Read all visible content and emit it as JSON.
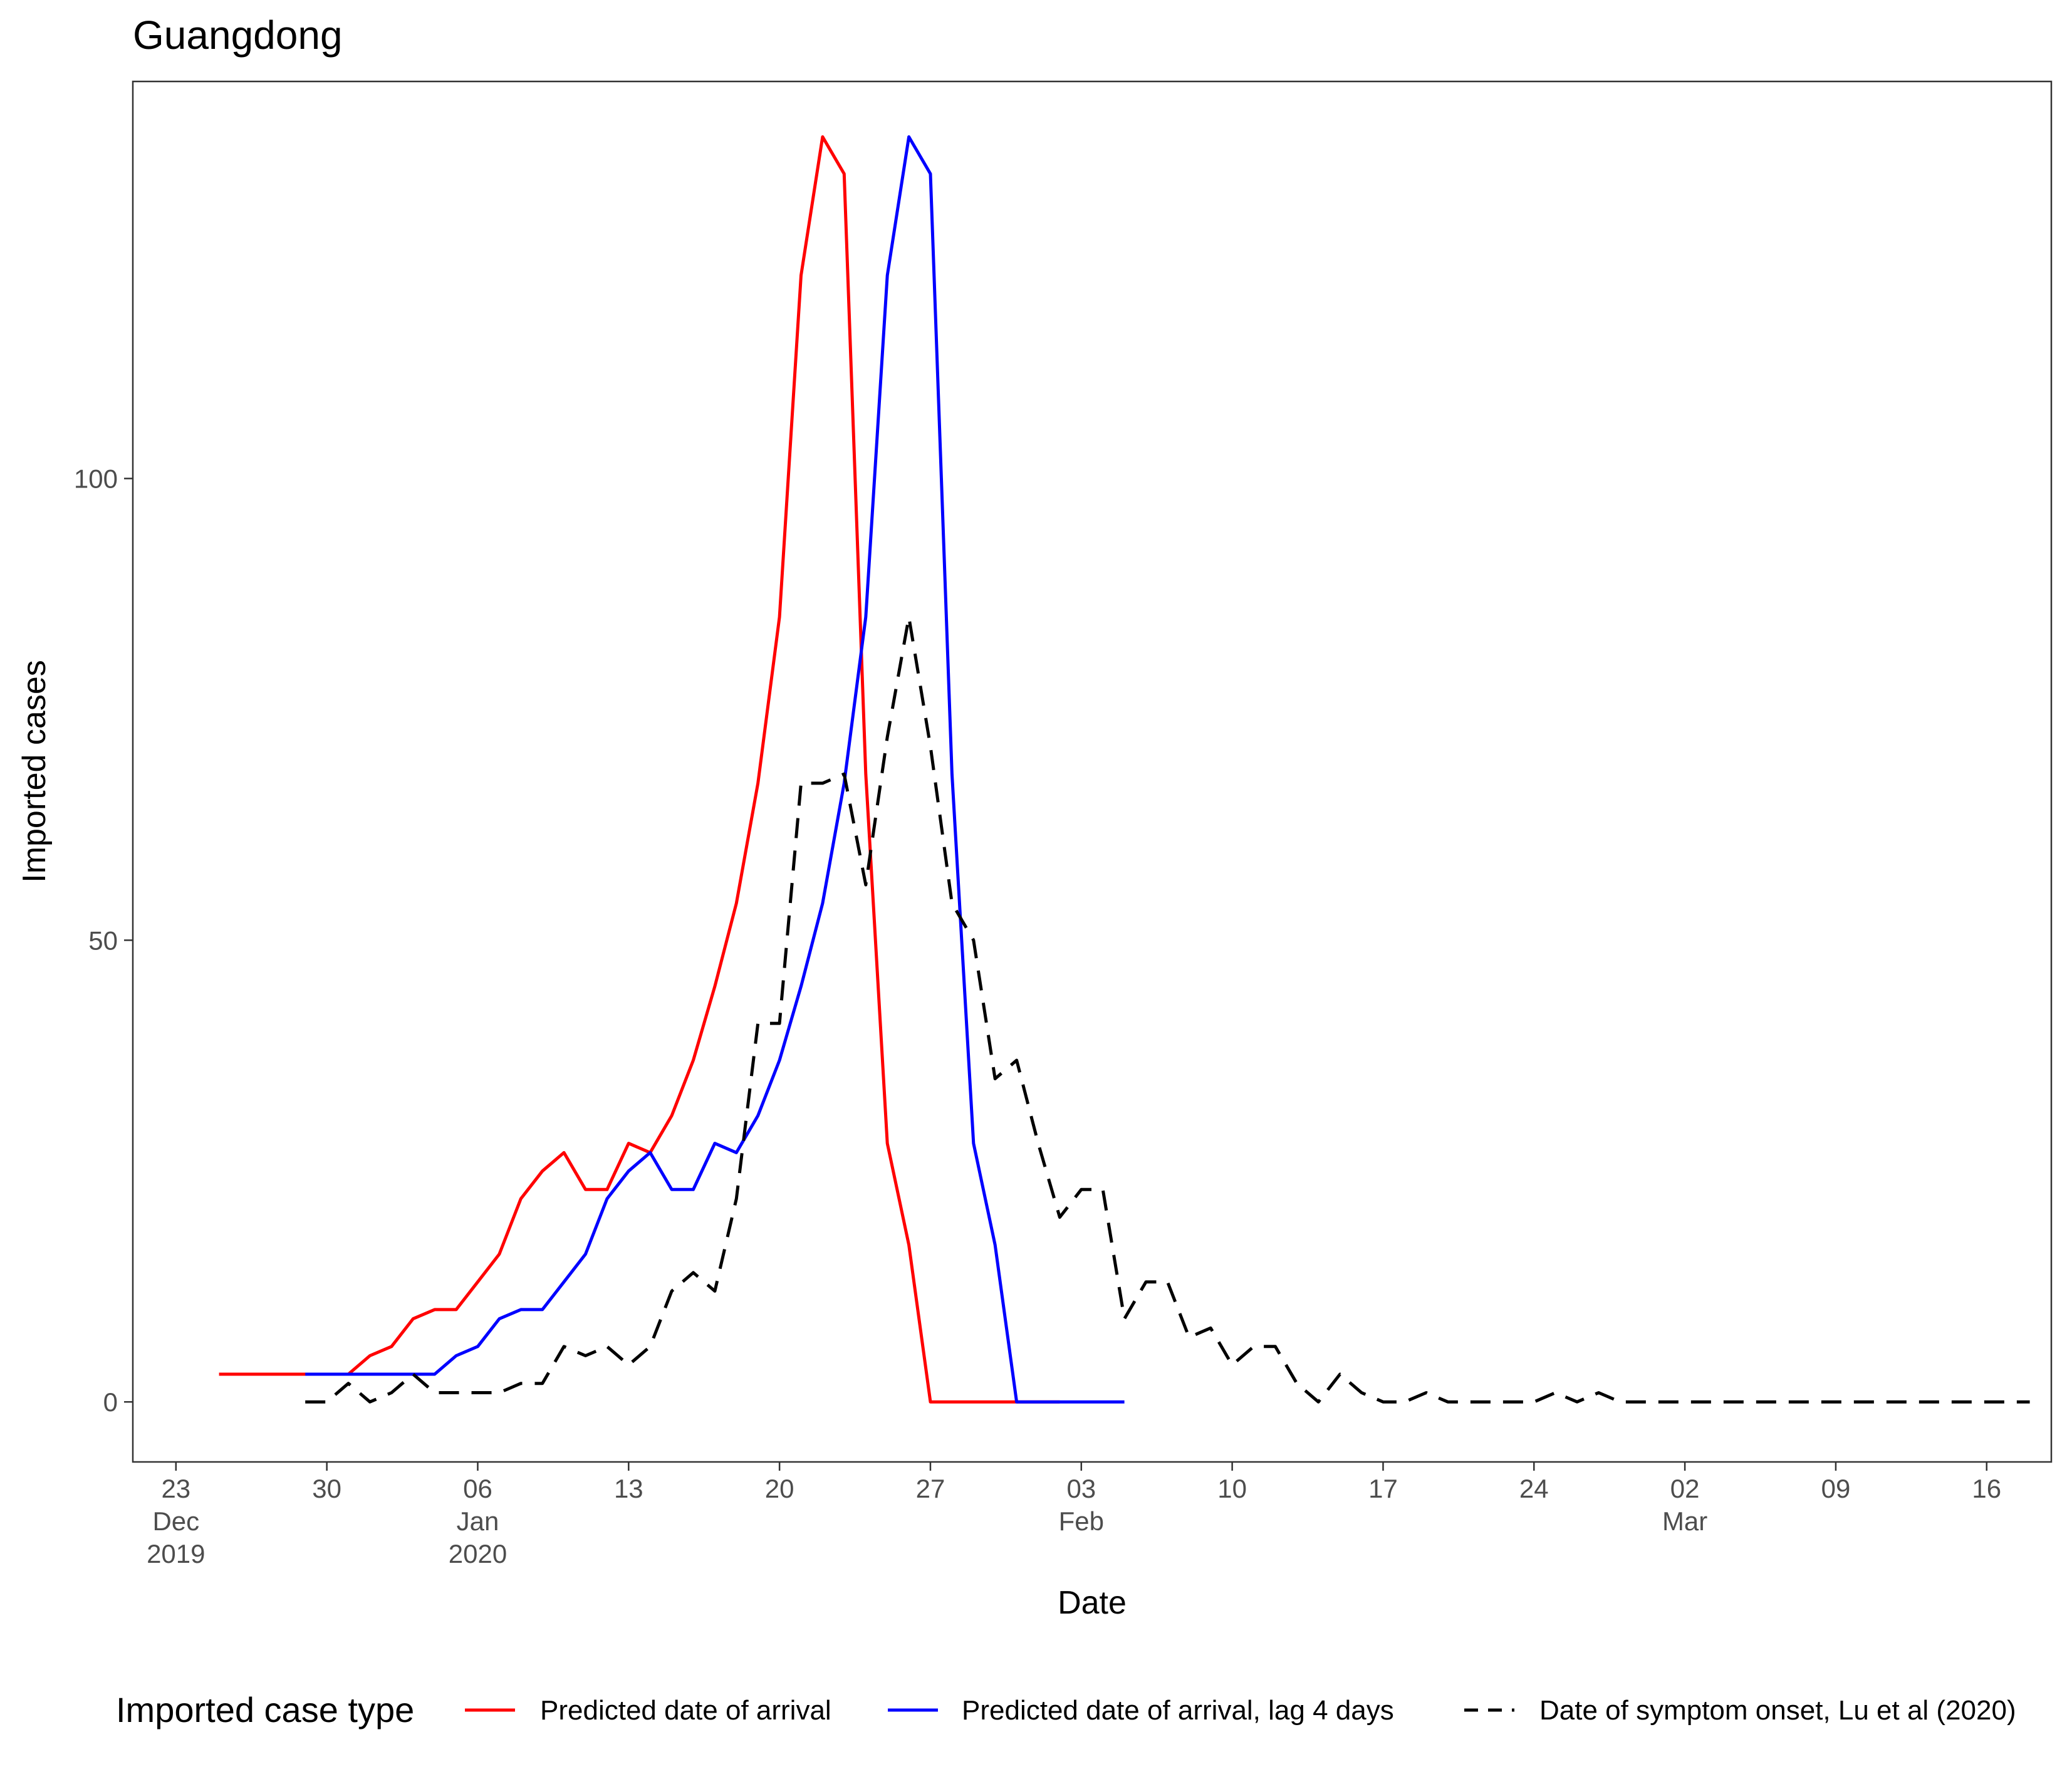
{
  "chart_data": {
    "type": "line",
    "title": "Guangdong",
    "xlabel": "Date",
    "ylabel": "Imported cases",
    "x_unit": "date",
    "xlim": [
      "2019-12-21",
      "2020-03-19"
    ],
    "ylim": [
      -6.5,
      143
    ],
    "grid": false,
    "y_ticks": [
      0,
      50,
      100
    ],
    "x_ticks": [
      {
        "date": "2019-12-23",
        "lines": [
          "23",
          "Dec",
          "2019"
        ]
      },
      {
        "date": "2019-12-30",
        "lines": [
          "30"
        ]
      },
      {
        "date": "2020-01-06",
        "lines": [
          "06",
          "Jan",
          "2020"
        ]
      },
      {
        "date": "2020-01-13",
        "lines": [
          "13"
        ]
      },
      {
        "date": "2020-01-20",
        "lines": [
          "20"
        ]
      },
      {
        "date": "2020-01-27",
        "lines": [
          "27"
        ]
      },
      {
        "date": "2020-02-03",
        "lines": [
          "03",
          "Feb"
        ]
      },
      {
        "date": "2020-02-10",
        "lines": [
          "10"
        ]
      },
      {
        "date": "2020-02-17",
        "lines": [
          "17"
        ]
      },
      {
        "date": "2020-02-24",
        "lines": [
          "24"
        ]
      },
      {
        "date": "2020-03-02",
        "lines": [
          "02",
          "Mar"
        ]
      },
      {
        "date": "2020-03-09",
        "lines": [
          "09"
        ]
      },
      {
        "date": "2020-03-16",
        "lines": [
          "16"
        ]
      }
    ],
    "legend": {
      "title": "Imported case type",
      "position": "bottom"
    },
    "series": [
      {
        "name": "Predicted date of arrival",
        "color": "#ff0000",
        "dash": "solid",
        "start_date": "2019-12-25",
        "values": [
          3,
          3,
          3,
          3,
          3,
          3,
          3,
          5,
          6,
          9,
          10,
          10,
          13,
          16,
          22,
          25,
          27,
          23,
          23,
          28,
          27,
          31,
          37,
          45,
          54,
          67,
          85,
          122,
          137,
          133,
          68,
          28,
          17,
          0,
          0,
          0,
          0,
          0,
          0,
          0
        ]
      },
      {
        "name": "Predicted date of arrival, lag 4 days",
        "color": "#0000ff",
        "dash": "solid",
        "start_date": "2019-12-29",
        "values": [
          3,
          3,
          3,
          3,
          3,
          3,
          3,
          5,
          6,
          9,
          10,
          10,
          13,
          16,
          22,
          25,
          27,
          23,
          23,
          28,
          27,
          31,
          37,
          45,
          54,
          67,
          85,
          122,
          137,
          133,
          68,
          28,
          17,
          0,
          0,
          0,
          0,
          0,
          0
        ]
      },
      {
        "name": "Date of symptom onset, Lu et al (2020)",
        "color": "#000000",
        "dash": "dashed",
        "start_date": "2019-12-29",
        "values": [
          0,
          0,
          2,
          0,
          1,
          3,
          1,
          1,
          1,
          1,
          2,
          2,
          6,
          5,
          6,
          4,
          6,
          12,
          14,
          12,
          22,
          41,
          41,
          67,
          67,
          68,
          56,
          72,
          85,
          71,
          54,
          50,
          35,
          37,
          28,
          20,
          23,
          23,
          9,
          13,
          13,
          7,
          8,
          4,
          6,
          6,
          2,
          0,
          3,
          1,
          0,
          0,
          1,
          0,
          0,
          0,
          0,
          0,
          1,
          0,
          1,
          0,
          0,
          0,
          0,
          0,
          0,
          0,
          0,
          0,
          0,
          0,
          0,
          0,
          0,
          0,
          0,
          0,
          0,
          0,
          0
        ]
      }
    ]
  }
}
